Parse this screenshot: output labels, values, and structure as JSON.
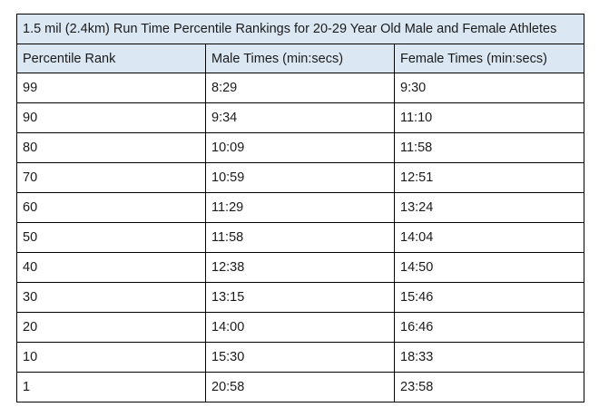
{
  "table": {
    "title": "1.5 mil (2.4km) Run Time Percentile Rankings for 20-29 Year Old Male and Female Athletes",
    "header_bg": "#dbe8f4",
    "columns": [
      "Percentile Rank",
      "Male Times (min:secs)",
      "Female Times (min:secs)"
    ],
    "rows": [
      [
        "99",
        "8:29",
        "9:30"
      ],
      [
        "90",
        "9:34",
        "11:10"
      ],
      [
        "80",
        "10:09",
        "11:58"
      ],
      [
        "70",
        "10:59",
        "12:51"
      ],
      [
        "60",
        "11:29",
        "13:24"
      ],
      [
        "50",
        "11:58",
        "14:04"
      ],
      [
        "40",
        "12:38",
        "14:50"
      ],
      [
        "30",
        "13:15",
        "15:46"
      ],
      [
        "20",
        "14:00",
        "16:46"
      ],
      [
        "10",
        "15:30",
        "18:33"
      ],
      [
        "1",
        "20:58",
        "23:58"
      ]
    ]
  }
}
